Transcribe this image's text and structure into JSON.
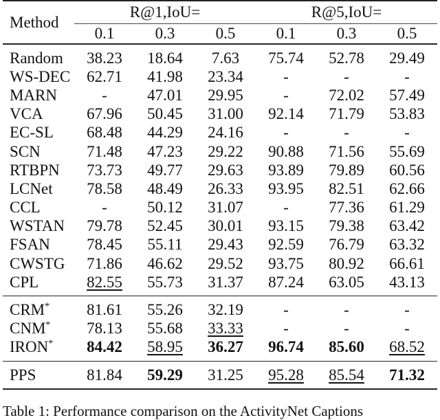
{
  "table": {
    "method_header": "Method",
    "group1_header": "R@1,IoU=",
    "group2_header": "R@5,IoU=",
    "thresholds": [
      "0.1",
      "0.3",
      "0.5",
      "0.1",
      "0.3",
      "0.5"
    ],
    "sections": [
      {
        "rows": [
          {
            "method": "Random",
            "values": [
              "38.23",
              "18.64",
              "7.63",
              "75.74",
              "52.78",
              "29.49"
            ]
          },
          {
            "method": "WS-DEC",
            "values": [
              "62.71",
              "41.98",
              "23.34",
              "-",
              "-",
              "-"
            ]
          },
          {
            "method": "MARN",
            "values": [
              "-",
              "47.01",
              "29.95",
              "-",
              "72.02",
              "57.49"
            ]
          },
          {
            "method": "VCA",
            "values": [
              "67.96",
              "50.45",
              "31.00",
              "92.14",
              "71.79",
              "53.83"
            ]
          },
          {
            "method": "EC-SL",
            "values": [
              "68.48",
              "44.29",
              "24.16",
              "-",
              "-",
              "-"
            ]
          },
          {
            "method": "SCN",
            "values": [
              "71.48",
              "47.23",
              "29.22",
              "90.88",
              "71.56",
              "55.69"
            ]
          },
          {
            "method": "RTBPN",
            "values": [
              "73.73",
              "49.77",
              "29.63",
              "93.89",
              "79.89",
              "60.56"
            ]
          },
          {
            "method": "LCNet",
            "values": [
              "78.58",
              "48.49",
              "26.33",
              "93.95",
              "82.51",
              "62.66"
            ]
          },
          {
            "method": "CCL",
            "values": [
              "-",
              "50.12",
              "31.07",
              "-",
              "77.36",
              "61.29"
            ]
          },
          {
            "method": "WSTAN",
            "values": [
              "79.78",
              "52.45",
              "30.01",
              "93.15",
              "79.38",
              "63.42"
            ]
          },
          {
            "method": "FSAN",
            "values": [
              "78.45",
              "55.11",
              "29.43",
              "92.59",
              "76.79",
              "63.32"
            ]
          },
          {
            "method": "CWSTG",
            "values": [
              "71.86",
              "46.62",
              "29.52",
              "93.75",
              "80.92",
              "66.61"
            ]
          },
          {
            "method": "CPL",
            "values": [
              "82.55",
              "55.73",
              "31.37",
              "87.24",
              "63.05",
              "43.13"
            ]
          }
        ]
      },
      {
        "rows": [
          {
            "method": "CRM*",
            "values": [
              "81.61",
              "55.26",
              "32.19",
              "-",
              "-",
              "-"
            ]
          },
          {
            "method": "CNM*",
            "values": [
              "78.13",
              "55.68",
              "33.33",
              "-",
              "-",
              "-"
            ]
          },
          {
            "method": "IRON*",
            "values": [
              "84.42",
              "58.95",
              "36.27",
              "96.74",
              "85.60",
              "68.52"
            ]
          }
        ]
      },
      {
        "rows": [
          {
            "method": "PPS",
            "values": [
              "81.84",
              "59.29",
              "31.25",
              "95.28",
              "85.54",
              "71.32"
            ]
          }
        ]
      }
    ],
    "bold_cells": [
      "1.2.0",
      "1.2.2",
      "1.2.3",
      "1.2.4",
      "2.0.1",
      "2.0.5"
    ],
    "underlined_cells": [
      "0.12.0",
      "1.1.2",
      "1.2.1",
      "1.2.5",
      "2.0.3",
      "2.0.4"
    ]
  },
  "caption": "Table 1: Performance comparison on the ActivityNet Captions"
}
